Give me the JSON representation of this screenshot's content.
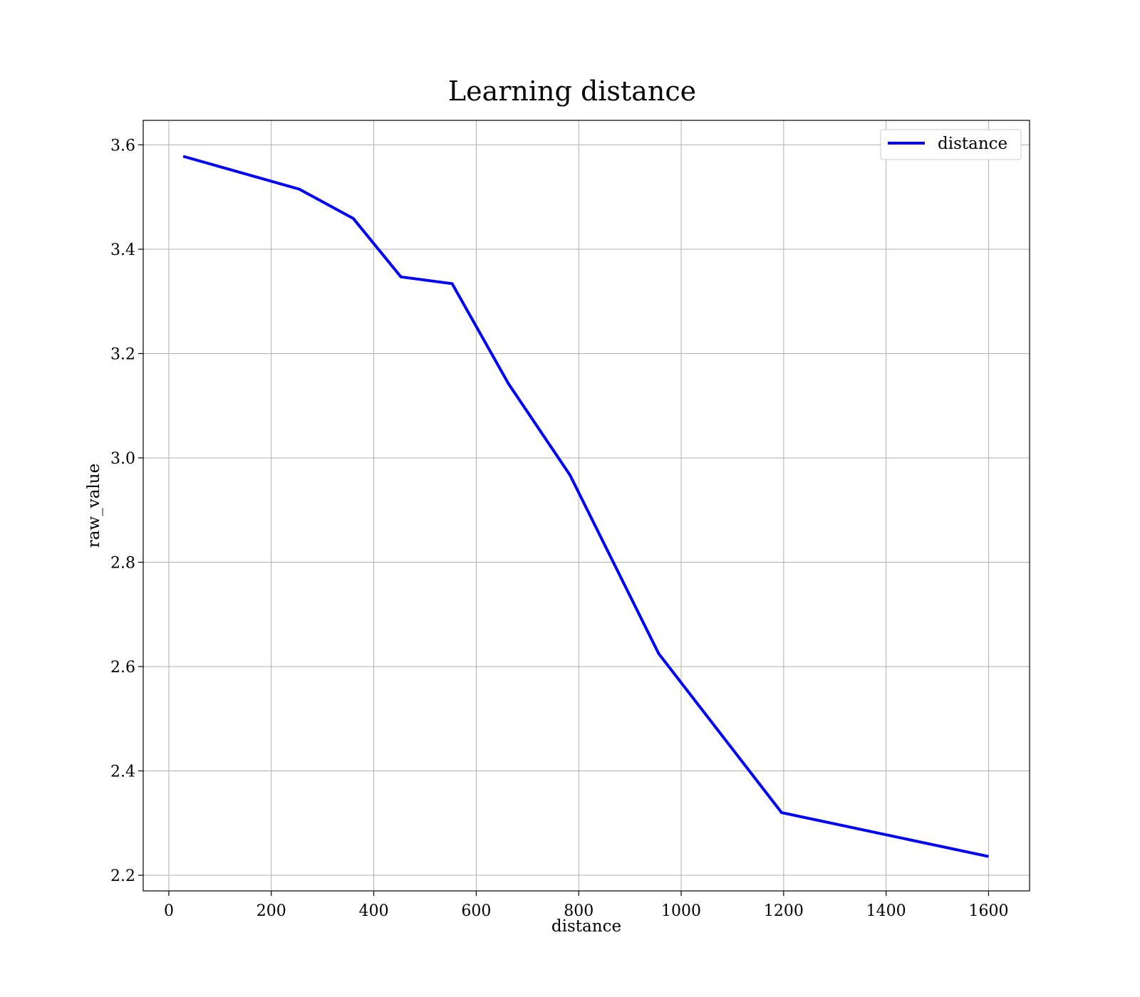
{
  "chart_data": {
    "type": "line",
    "title": "Learning distance",
    "xlabel": "distance",
    "ylabel": "raw_value",
    "xlim": [
      -50,
      1680
    ],
    "ylim": [
      2.17,
      3.647
    ],
    "xticks": [
      0,
      200,
      400,
      600,
      800,
      1000,
      1200,
      1400,
      1600
    ],
    "yticks": [
      2.2,
      2.4,
      2.6,
      2.8,
      3.0,
      3.2,
      3.4,
      3.6
    ],
    "grid": true,
    "legend_position": "top-right",
    "series": [
      {
        "name": "distance",
        "color": "#0000ff",
        "x": [
          28,
          255,
          360,
          453,
          553,
          663,
          783,
          956,
          1196,
          1600
        ],
        "y": [
          3.578,
          3.515,
          3.459,
          3.347,
          3.334,
          3.142,
          2.967,
          2.625,
          2.32,
          2.236
        ]
      }
    ]
  }
}
